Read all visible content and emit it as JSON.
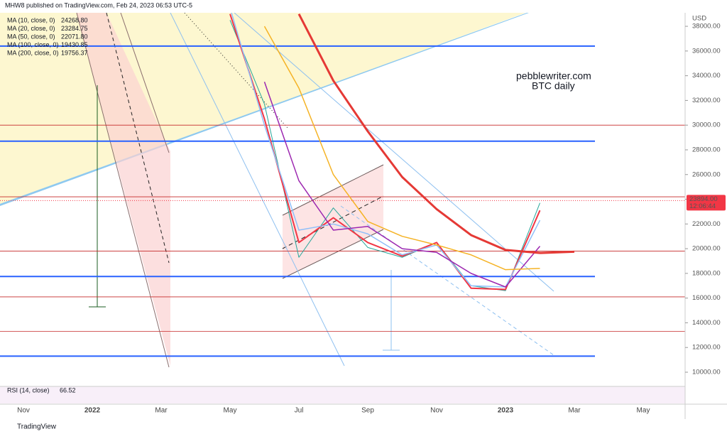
{
  "header": {
    "publisher": "MHW8 published on TradingView.com, Feb 24, 2023 06:53 UTC-5"
  },
  "footer": {
    "brand": "TradingView"
  },
  "chart_data": {
    "type": "line",
    "annotations": [
      "pebblewriter.com",
      "BTC daily"
    ],
    "y_axis_label": "USD",
    "categories": [
      "Nov",
      null,
      "2022",
      null,
      "Mar",
      null,
      "May",
      null,
      "Jul",
      null,
      "Sep",
      null,
      "Nov",
      null,
      "2023",
      null,
      "Mar",
      null,
      "May"
    ],
    "ylim": [
      9080,
      39670
    ],
    "yticks": [
      {
        "value": 10000,
        "label": "10000.00"
      },
      {
        "value": 12000,
        "label": "12000.00"
      },
      {
        "value": 14000,
        "label": "14000.00"
      },
      {
        "value": 16000,
        "label": "16000.00"
      },
      {
        "value": 18000,
        "label": "18000.00"
      },
      {
        "value": 20000,
        "label": "20000.00"
      },
      {
        "value": 22000,
        "label": "22000.00"
      },
      {
        "value": 24000,
        "label": "24000.00"
      },
      {
        "value": 26000,
        "label": "26000.00"
      },
      {
        "value": 28000,
        "label": "28000.00"
      },
      {
        "value": 30000,
        "label": "30000.00"
      },
      {
        "value": 32000,
        "label": "32000.00"
      },
      {
        "value": 34000,
        "label": "34000.00"
      },
      {
        "value": 36000,
        "label": "36000.00"
      },
      {
        "value": 38000,
        "label": "38000.00"
      }
    ],
    "price": {
      "color": "#26a69a",
      "values": [
        null,
        null,
        null,
        null,
        null,
        null,
        38500,
        31700,
        19300,
        23300,
        20100,
        19300,
        20500,
        17000,
        16600,
        23700,
        null,
        null,
        null
      ]
    },
    "series": [
      {
        "name": "MA (10, close, 0)",
        "last_label": "24268.80",
        "color": "#f23645",
        "values": [
          null,
          null,
          null,
          null,
          null,
          null,
          39000,
          30500,
          20500,
          22500,
          20500,
          19400,
          20500,
          16800,
          16700,
          23100,
          null,
          null,
          null
        ]
      },
      {
        "name": "MA (20, close, 0)",
        "last_label": "23284.75",
        "color": "#90bff9",
        "values": [
          null,
          null,
          null,
          null,
          null,
          null,
          39500,
          30000,
          21500,
          22000,
          21200,
          19500,
          20300,
          17000,
          16900,
          22300,
          null,
          null,
          null
        ]
      },
      {
        "name": "MA (50, close, 0)",
        "last_label": "22071.80",
        "color": "#9c27b0",
        "values": [
          null,
          null,
          null,
          null,
          null,
          null,
          null,
          33500,
          25500,
          21500,
          21800,
          20000,
          19700,
          18000,
          16900,
          20200,
          null,
          null,
          null
        ]
      },
      {
        "name": "MA (100, close, 0)",
        "last_label": "19430.85",
        "color": "#f5b325",
        "values": [
          null,
          null,
          null,
          null,
          null,
          null,
          null,
          38000,
          33000,
          26000,
          22200,
          21000,
          20300,
          19500,
          18300,
          18400,
          null,
          null,
          null
        ]
      },
      {
        "name": "MA (200, close, 0)",
        "last_label": "19756.37",
        "color": "#e53935",
        "values": [
          null,
          null,
          null,
          null,
          null,
          null,
          null,
          null,
          39000,
          33600,
          29500,
          25800,
          23200,
          21100,
          19900,
          19650,
          19756,
          null,
          null
        ]
      }
    ],
    "last_price": {
      "value": 23894,
      "label": "23894.00",
      "countdown": "12:06:44",
      "color": "#f23645"
    },
    "blue_levels": {
      "color": "#2962ff",
      "values": [
        36400,
        28700,
        17750,
        11300
      ]
    },
    "red_levels": {
      "color": "#c62828",
      "values": [
        30000,
        24200,
        19800,
        16100,
        13300
      ]
    },
    "indicator": {
      "label": "RSI (14, close)",
      "value": 66.52,
      "color": "#9c27b0"
    }
  }
}
